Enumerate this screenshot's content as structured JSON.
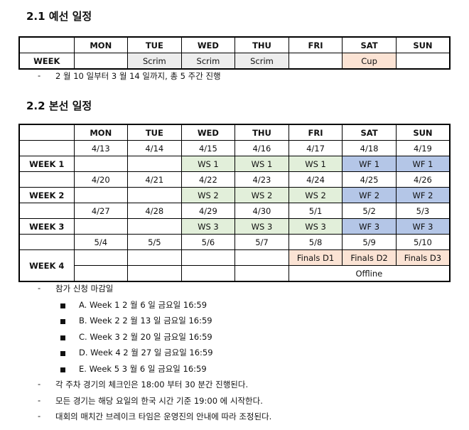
{
  "section1": {
    "title": "2.1 예선 일정",
    "days": [
      "MON",
      "TUE",
      "WED",
      "THU",
      "FRI",
      "SAT",
      "SUN"
    ],
    "row_label": "WEEK",
    "cells": [
      "",
      "Scrim",
      "Scrim",
      "Scrim",
      "",
      "Cup",
      ""
    ],
    "cell_colors": [
      "",
      "#ededed",
      "#ededed",
      "#ededed",
      "",
      "#fbe3d4",
      ""
    ],
    "note": "2 월 10 일부터 3 월 14 일까지, 총 5 주간 진행"
  },
  "section2": {
    "title": "2.2 본선 일정",
    "days": [
      "MON",
      "TUE",
      "WED",
      "THU",
      "FRI",
      "SAT",
      "SUN"
    ],
    "weeks": [
      {
        "label": "WEEK 1",
        "dates": [
          "4/13",
          "4/14",
          "4/15",
          "4/16",
          "4/17",
          "4/18",
          "4/19"
        ],
        "events": [
          "",
          "",
          "WS 1",
          "WS 1",
          "WS 1",
          "WF 1",
          "WF 1"
        ]
      },
      {
        "label": "WEEK 2",
        "dates": [
          "4/20",
          "4/21",
          "4/22",
          "4/23",
          "4/24",
          "4/25",
          "4/26"
        ],
        "events": [
          "",
          "",
          "WS 2",
          "WS 2",
          "WS 2",
          "WF 2",
          "WF 2"
        ]
      },
      {
        "label": "WEEK 3",
        "dates": [
          "4/27",
          "4/28",
          "4/29",
          "4/30",
          "5/1",
          "5/2",
          "5/3"
        ],
        "events": [
          "",
          "",
          "WS 3",
          "WS 3",
          "WS 3",
          "WF 3",
          "WF 3"
        ]
      },
      {
        "label": "WEEK 4",
        "dates": [
          "5/4",
          "5/5",
          "5/6",
          "5/7",
          "5/8",
          "5/9",
          "5/10"
        ],
        "events": [
          "",
          "",
          "",
          "",
          "Finals D1",
          "Finals D2",
          "Finals D3"
        ],
        "venue": "Offline"
      }
    ],
    "colors": {
      "WS": "#e2efda",
      "WF": "#b4c6e7",
      "Finals": "#fbe3d4"
    }
  },
  "notes": {
    "deadline_title": "참가 신청 마감일",
    "deadlines": [
      "A. Week 1 2 월 6 일 금요일 16:59",
      "B. Week 2 2 월 13 일 금요일 16:59",
      "C. Week 3 2 월 20 일 금요일 16:59",
      "D. Week 4 2 월 27 일 금요일 16:59",
      "E. Week 5 3 월 6 일 금요일 16:59"
    ],
    "items": [
      "각 주차 경기의 체크인은 18:00 부터 30 분간 진행된다.",
      "모든 경기는 해당 요일의 한국 시간 기준 19:00 에 시작한다.",
      "대회의 매치간 브레이크 타임은 운영진의 안내에 따라 조정된다."
    ]
  }
}
